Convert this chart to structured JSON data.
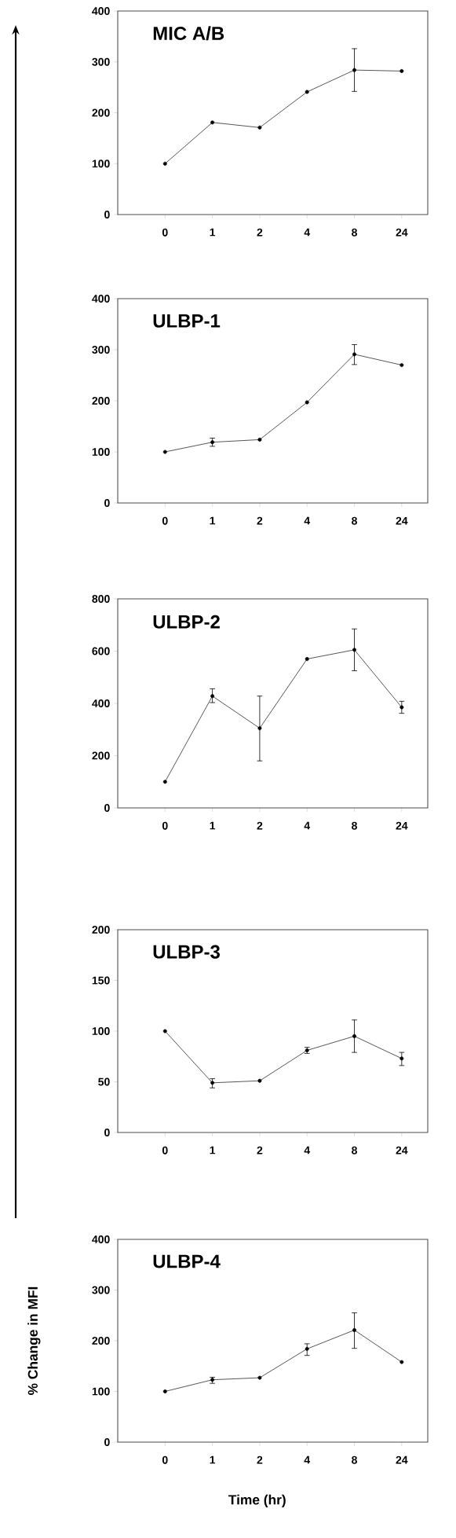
{
  "chart_data": [
    {
      "type": "line",
      "title": "MIC A/B",
      "categories": [
        "0",
        "1",
        "2",
        "4",
        "8",
        "24"
      ],
      "values": [
        100,
        181,
        171,
        241,
        284,
        282
      ],
      "errors": [
        null,
        null,
        null,
        null,
        [
          242,
          326
        ],
        null
      ],
      "color": "#000000",
      "marker": "circle",
      "ylim": [
        0,
        400
      ],
      "yticks": [
        0,
        100,
        200,
        300,
        400
      ]
    },
    {
      "type": "line",
      "title": "ULBP-1",
      "categories": [
        "0",
        "1",
        "2",
        "4",
        "8",
        "24"
      ],
      "values": [
        100,
        119,
        124,
        197,
        291,
        270
      ],
      "errors": [
        null,
        [
          111,
          127
        ],
        null,
        null,
        [
          271,
          310
        ],
        null
      ],
      "color": "#000000",
      "marker": "circle",
      "ylim": [
        0,
        400
      ],
      "yticks": [
        0,
        100,
        200,
        300,
        400
      ]
    },
    {
      "type": "line",
      "title": "ULBP-2",
      "categories": [
        "0",
        "1",
        "2",
        "4",
        "8",
        "24"
      ],
      "values": [
        100,
        428,
        305,
        570,
        605,
        385
      ],
      "errors": [
        null,
        [
          403,
          456
        ],
        [
          180,
          428
        ],
        null,
        [
          525,
          685
        ],
        [
          362,
          408
        ]
      ],
      "color": "#000000",
      "marker": "circle",
      "ylim": [
        0,
        800
      ],
      "yticks": [
        0,
        200,
        400,
        600,
        800
      ]
    },
    {
      "type": "line",
      "title": "ULBP-3",
      "categories": [
        "0",
        "1",
        "2",
        "4",
        "8",
        "24"
      ],
      "values": [
        100,
        49,
        51,
        81,
        95,
        73
      ],
      "errors": [
        null,
        [
          44,
          53
        ],
        null,
        [
          78,
          84
        ],
        [
          79,
          111
        ],
        [
          66,
          79
        ]
      ],
      "color": "#000000",
      "marker": "circle",
      "ylim": [
        0,
        200
      ],
      "yticks": [
        0,
        50,
        100,
        150,
        200
      ]
    },
    {
      "type": "line",
      "title": "ULBP-4",
      "xlabel": "Time (hr)",
      "ylabel": "% Change in MFI",
      "categories": [
        "0",
        "1",
        "2",
        "4",
        "8",
        "24"
      ],
      "values": [
        100,
        123,
        127,
        184,
        221,
        158
      ],
      "errors": [
        null,
        [
          116,
          128
        ],
        null,
        [
          171,
          194
        ],
        [
          185,
          255
        ],
        null
      ],
      "color": "#000000",
      "marker": "circle",
      "ylim": [
        0,
        400
      ],
      "yticks": [
        0,
        100,
        200,
        300,
        400
      ]
    }
  ]
}
